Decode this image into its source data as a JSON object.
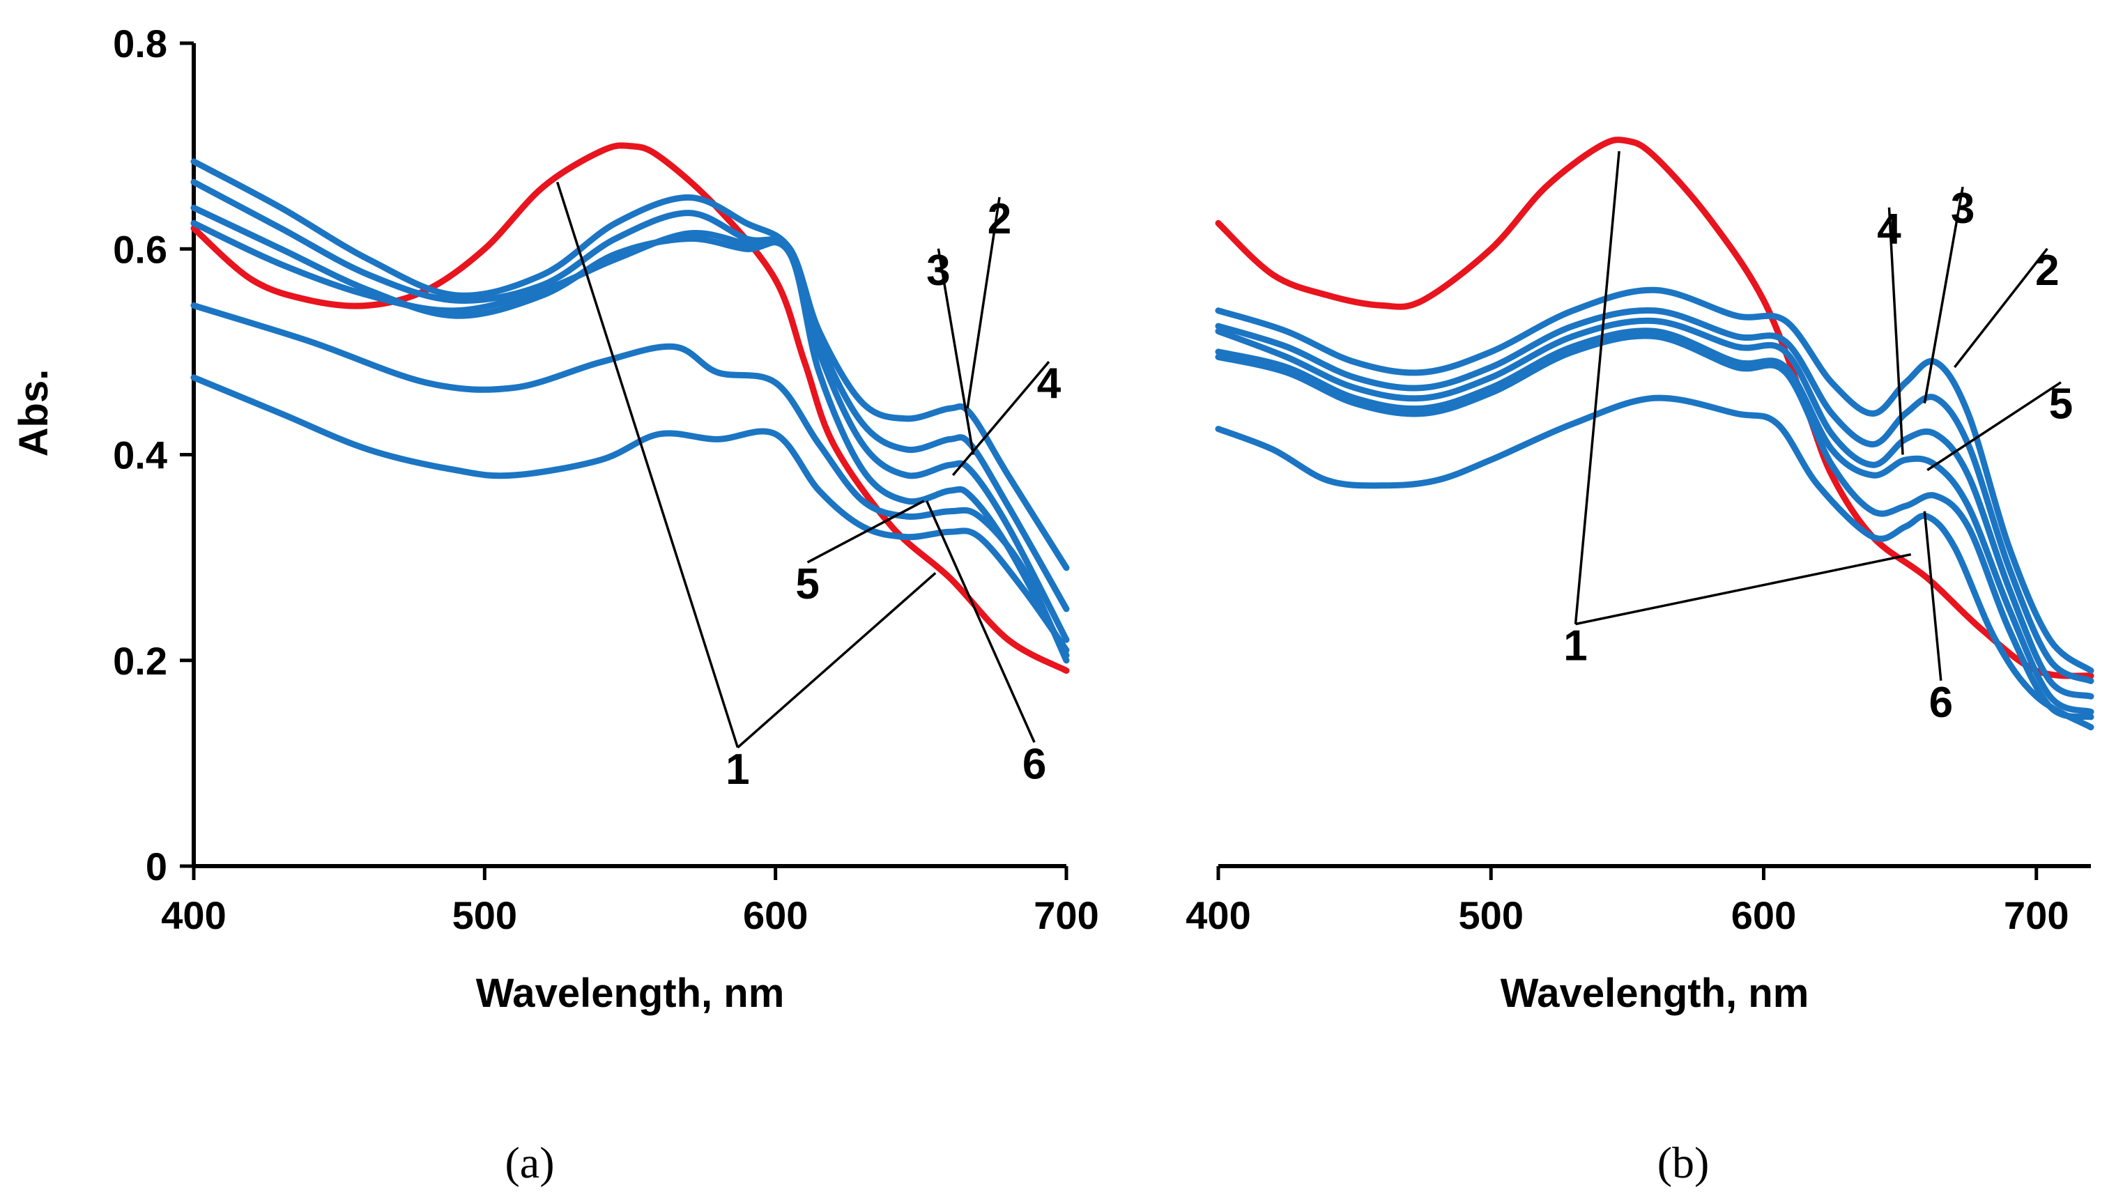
{
  "colors": {
    "reference_curve": "#E8141E",
    "sample_curve": "#1B75C3"
  },
  "chart_data": [
    {
      "id": "a",
      "type": "line",
      "panel_label": "(a)",
      "xlabel": "Wavelength, nm",
      "ylabel": "Abs.",
      "xlim": [
        400,
        700
      ],
      "ylim": [
        0,
        0.8
      ],
      "xticks": [
        400,
        500,
        600,
        700
      ],
      "yticks": [
        0,
        0.2,
        0.4,
        0.6,
        0.8
      ],
      "ytick_labels": [
        "0",
        "0.2",
        "0.4",
        "0.6",
        "0.8"
      ],
      "series": [
        {
          "color": "#E8141E",
          "x": [
            400,
            420,
            440,
            460,
            480,
            500,
            520,
            540,
            550,
            560,
            580,
            600,
            610,
            620,
            640,
            660,
            680,
            700
          ],
          "y": [
            0.62,
            0.57,
            0.55,
            0.545,
            0.56,
            0.6,
            0.66,
            0.695,
            0.7,
            0.69,
            0.64,
            0.57,
            0.49,
            0.41,
            0.33,
            0.28,
            0.22,
            0.19
          ]
        },
        {
          "color": "#1B75C3",
          "x": [
            400,
            430,
            460,
            490,
            520,
            545,
            570,
            590,
            605,
            615,
            630,
            645,
            660,
            667,
            680,
            700
          ],
          "y": [
            0.685,
            0.64,
            0.59,
            0.555,
            0.575,
            0.625,
            0.65,
            0.625,
            0.6,
            0.52,
            0.45,
            0.435,
            0.445,
            0.44,
            0.38,
            0.29
          ]
        },
        {
          "color": "#1B75C3",
          "x": [
            400,
            430,
            460,
            490,
            520,
            545,
            570,
            590,
            605,
            615,
            630,
            645,
            660,
            667,
            680,
            700
          ],
          "y": [
            0.665,
            0.62,
            0.575,
            0.55,
            0.565,
            0.61,
            0.635,
            0.61,
            0.6,
            0.51,
            0.43,
            0.405,
            0.415,
            0.41,
            0.35,
            0.25
          ]
        },
        {
          "color": "#1B75C3",
          "x": [
            400,
            430,
            460,
            490,
            520,
            545,
            570,
            590,
            605,
            615,
            630,
            645,
            660,
            667,
            680,
            700
          ],
          "y": [
            0.64,
            0.6,
            0.56,
            0.535,
            0.555,
            0.595,
            0.61,
            0.6,
            0.6,
            0.5,
            0.41,
            0.38,
            0.39,
            0.385,
            0.33,
            0.22
          ]
        },
        {
          "color": "#1B75C3",
          "x": [
            400,
            430,
            460,
            490,
            520,
            545,
            570,
            590,
            605,
            615,
            630,
            645,
            660,
            667,
            680,
            700
          ],
          "y": [
            0.625,
            0.585,
            0.555,
            0.54,
            0.56,
            0.59,
            0.615,
            0.605,
            0.595,
            0.48,
            0.385,
            0.355,
            0.365,
            0.36,
            0.31,
            0.205
          ]
        },
        {
          "color": "#1B75C3",
          "x": [
            400,
            440,
            480,
            510,
            540,
            565,
            580,
            600,
            615,
            630,
            645,
            660,
            670,
            685,
            700
          ],
          "y": [
            0.545,
            0.51,
            0.47,
            0.465,
            0.49,
            0.505,
            0.48,
            0.47,
            0.41,
            0.355,
            0.34,
            0.345,
            0.34,
            0.29,
            0.2
          ]
        },
        {
          "color": "#1B75C3",
          "x": [
            400,
            430,
            460,
            490,
            510,
            540,
            560,
            580,
            600,
            615,
            630,
            645,
            660,
            670,
            685,
            700
          ],
          "y": [
            0.475,
            0.44,
            0.405,
            0.385,
            0.38,
            0.395,
            0.42,
            0.415,
            0.42,
            0.365,
            0.33,
            0.32,
            0.325,
            0.32,
            0.27,
            0.21
          ]
        }
      ],
      "annotations": [
        {
          "text": "1",
          "at": [
            587,
            0.095
          ],
          "leaders": [
            [
              525,
              0.665
            ],
            [
              655,
              0.285
            ]
          ]
        },
        {
          "text": "2",
          "at": [
            677,
            0.63
          ],
          "leaders": [
            [
              666,
              0.445
            ]
          ]
        },
        {
          "text": "3",
          "at": [
            656,
            0.58
          ],
          "leaders": [
            [
              668,
              0.4
            ]
          ]
        },
        {
          "text": "4",
          "at": [
            694,
            0.47
          ],
          "leaders": [
            [
              661,
              0.38
            ]
          ]
        },
        {
          "text": "5",
          "at": [
            611,
            0.275
          ],
          "leaders": [
            [
              651,
              0.355
            ]
          ]
        },
        {
          "text": "6",
          "at": [
            689,
            0.1
          ],
          "leaders": [
            [
              652,
              0.355
            ]
          ]
        }
      ]
    },
    {
      "id": "b",
      "type": "line",
      "panel_label": "(b)",
      "xlabel": "Wavelength, nm",
      "ylabel": "",
      "xlim": [
        400,
        720
      ],
      "ylim": [
        0,
        0.8
      ],
      "xticks": [
        400,
        500,
        600,
        700
      ],
      "yticks": [],
      "ytick_labels": [],
      "series": [
        {
          "color": "#E8141E",
          "x": [
            400,
            420,
            440,
            460,
            475,
            500,
            520,
            540,
            550,
            560,
            580,
            600,
            615,
            625,
            640,
            660,
            680,
            700,
            720
          ],
          "y": [
            0.625,
            0.575,
            0.555,
            0.545,
            0.55,
            0.6,
            0.66,
            0.7,
            0.705,
            0.69,
            0.63,
            0.55,
            0.45,
            0.38,
            0.32,
            0.28,
            0.23,
            0.19,
            0.185
          ]
        },
        {
          "color": "#1B75C3",
          "x": [
            400,
            425,
            450,
            475,
            500,
            530,
            560,
            590,
            608,
            625,
            640,
            652,
            663,
            675,
            690,
            705,
            720
          ],
          "y": [
            0.54,
            0.52,
            0.49,
            0.48,
            0.5,
            0.54,
            0.56,
            0.535,
            0.53,
            0.47,
            0.44,
            0.47,
            0.49,
            0.44,
            0.31,
            0.22,
            0.19
          ]
        },
        {
          "color": "#1B75C3",
          "x": [
            400,
            425,
            450,
            475,
            500,
            530,
            560,
            590,
            608,
            625,
            640,
            652,
            663,
            675,
            690,
            705,
            720
          ],
          "y": [
            0.525,
            0.505,
            0.475,
            0.465,
            0.485,
            0.525,
            0.54,
            0.515,
            0.51,
            0.44,
            0.41,
            0.44,
            0.455,
            0.41,
            0.29,
            0.2,
            0.18
          ]
        },
        {
          "color": "#1B75C3",
          "x": [
            400,
            425,
            450,
            475,
            500,
            530,
            560,
            590,
            608,
            625,
            640,
            652,
            663,
            675,
            690,
            705,
            720
          ],
          "y": [
            0.52,
            0.495,
            0.465,
            0.455,
            0.475,
            0.515,
            0.53,
            0.505,
            0.5,
            0.42,
            0.39,
            0.415,
            0.42,
            0.38,
            0.27,
            0.18,
            0.165
          ]
        },
        {
          "color": "#1B75C3",
          "x": [
            400,
            425,
            450,
            475,
            500,
            530,
            560,
            590,
            608,
            625,
            640,
            652,
            663,
            675,
            690,
            705,
            720
          ],
          "y": [
            0.5,
            0.485,
            0.455,
            0.445,
            0.465,
            0.505,
            0.52,
            0.49,
            0.485,
            0.405,
            0.38,
            0.395,
            0.39,
            0.35,
            0.25,
            0.165,
            0.15
          ]
        },
        {
          "color": "#1B75C3",
          "x": [
            400,
            425,
            450,
            475,
            500,
            530,
            560,
            590,
            608,
            625,
            640,
            652,
            663,
            675,
            690,
            705,
            720
          ],
          "y": [
            0.495,
            0.48,
            0.45,
            0.44,
            0.46,
            0.5,
            0.515,
            0.485,
            0.48,
            0.39,
            0.345,
            0.35,
            0.36,
            0.33,
            0.23,
            0.155,
            0.145
          ]
        },
        {
          "color": "#1B75C3",
          "x": [
            400,
            420,
            440,
            460,
            480,
            500,
            530,
            560,
            590,
            605,
            620,
            640,
            652,
            660,
            670,
            685,
            700,
            720
          ],
          "y": [
            0.425,
            0.405,
            0.375,
            0.37,
            0.375,
            0.395,
            0.43,
            0.455,
            0.44,
            0.43,
            0.37,
            0.32,
            0.33,
            0.34,
            0.31,
            0.22,
            0.165,
            0.135
          ]
        }
      ],
      "annotations": [
        {
          "text": "1",
          "at": [
            531,
            0.215
          ],
          "leaders": [
            [
              547,
              0.695
            ],
            [
              654,
              0.303
            ]
          ]
        },
        {
          "text": "2",
          "at": [
            704,
            0.58
          ],
          "leaders": [
            [
              670,
              0.485
            ]
          ]
        },
        {
          "text": "3",
          "at": [
            673,
            0.64
          ],
          "leaders": [
            [
              659,
              0.45
            ]
          ]
        },
        {
          "text": "4",
          "at": [
            646,
            0.62
          ],
          "leaders": [
            [
              651,
              0.4
            ]
          ]
        },
        {
          "text": "5",
          "at": [
            709,
            0.45
          ],
          "leaders": [
            [
              660,
              0.385
            ]
          ]
        },
        {
          "text": "6",
          "at": [
            665,
            0.16
          ],
          "leaders": [
            [
              659,
              0.345
            ]
          ]
        }
      ]
    }
  ]
}
